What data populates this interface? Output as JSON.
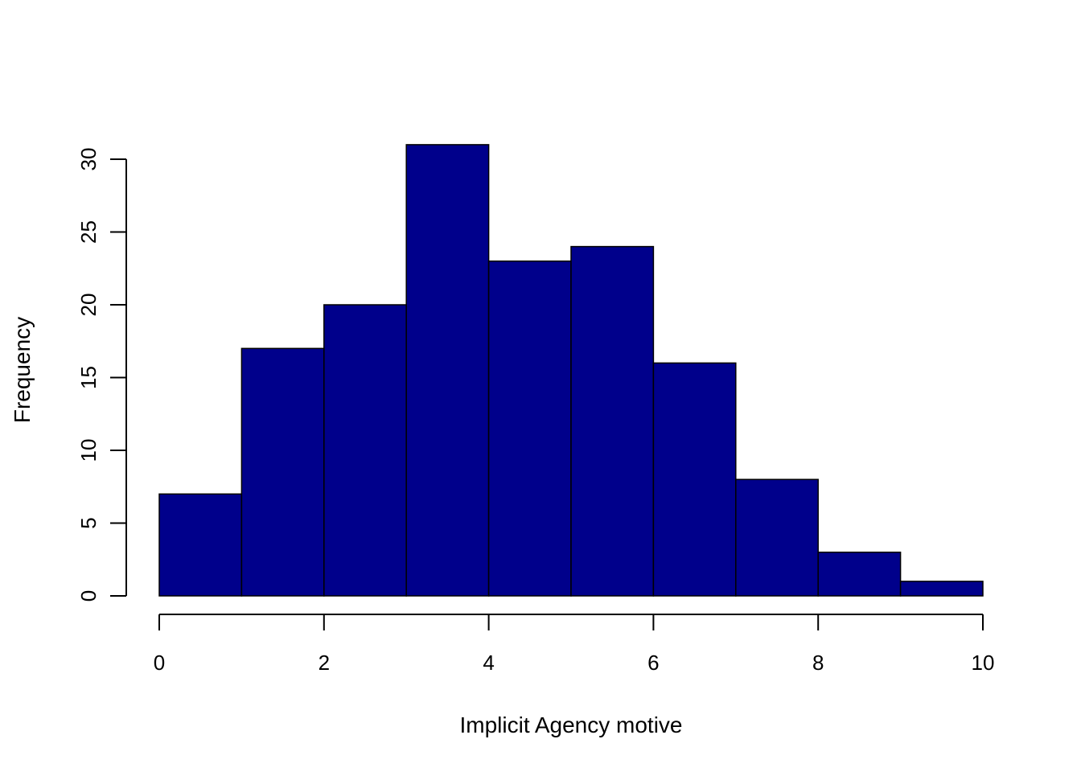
{
  "chart_data": {
    "type": "bar",
    "title": "",
    "xlabel": "Implicit Agency motive",
    "ylabel": "Frequency",
    "bins": [
      {
        "start": 0,
        "end": 1,
        "count": 7
      },
      {
        "start": 1,
        "end": 2,
        "count": 17
      },
      {
        "start": 2,
        "end": 3,
        "count": 20
      },
      {
        "start": 3,
        "end": 4,
        "count": 31
      },
      {
        "start": 4,
        "end": 5,
        "count": 23
      },
      {
        "start": 5,
        "end": 6,
        "count": 24
      },
      {
        "start": 6,
        "end": 7,
        "count": 16
      },
      {
        "start": 7,
        "end": 8,
        "count": 8
      },
      {
        "start": 8,
        "end": 9,
        "count": 3
      },
      {
        "start": 9,
        "end": 10,
        "count": 1
      }
    ],
    "xlim": [
      0,
      10
    ],
    "ylim": [
      0,
      30
    ],
    "x_ticks": [
      "0",
      "2",
      "4",
      "6",
      "8",
      "10"
    ],
    "y_ticks": [
      "0",
      "5",
      "10",
      "15",
      "20",
      "25",
      "30"
    ],
    "bar_color": "#00008B",
    "bar_border_color": "#000000",
    "grid": false,
    "legend": "none"
  }
}
